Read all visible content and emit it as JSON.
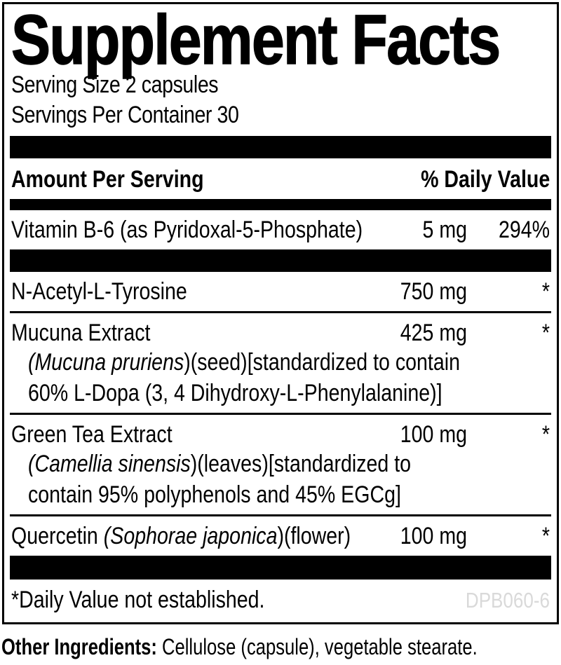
{
  "label": {
    "title": "Supplement Facts",
    "serving_size": "Serving Size 2 capsules",
    "servings_per_container": "Servings Per Container 30",
    "header": {
      "amount_per_serving": "Amount Per Serving",
      "daily_value": "% Daily Value"
    },
    "rows": [
      {
        "name_parts": [
          {
            "t": "Vitamin B-6 (as Pyridoxal-5-Phosphate)"
          }
        ],
        "amount": "5 mg",
        "dv": "294%",
        "after": "bar"
      },
      {
        "name_parts": [
          {
            "t": "N-Acetyl-L-Tyrosine"
          }
        ],
        "amount": "750 mg",
        "dv": "*",
        "after": "rule"
      },
      {
        "name_parts": [
          {
            "t": "Mucuna Extract"
          }
        ],
        "amount": "425 mg",
        "dv": "*",
        "details": [
          [
            {
              "t": "(Mucuna pruriens",
              "i": true
            },
            {
              "t": ")(seed)[standardized to contain"
            }
          ],
          [
            {
              "t": "60% L-Dopa (3, 4 Dihydroxy-L-Phenylalanine)]"
            }
          ]
        ],
        "after": "rule"
      },
      {
        "name_parts": [
          {
            "t": "Green Tea Extract"
          }
        ],
        "amount": "100 mg",
        "dv": "*",
        "details": [
          [
            {
              "t": "(Camellia sinensis",
              "i": true
            },
            {
              "t": ")(leaves)[standardized to"
            }
          ],
          [
            {
              "t": "contain 95% polyphenols and 45% EGCg]"
            }
          ]
        ],
        "after": "rule"
      },
      {
        "name_parts": [
          {
            "t": "Quercetin "
          },
          {
            "t": "(Sophorae japonica",
            "i": true
          },
          {
            "t": ")(flower)"
          }
        ],
        "amount": "100 mg",
        "dv": "*",
        "after": "bar-bottom"
      }
    ],
    "footnote": "*Daily Value not established.",
    "code": "DPB060-6",
    "other_ingredients": {
      "label": "Other Ingredients:",
      "text": " Cellulose (capsule), vegetable stearate."
    }
  },
  "colors": {
    "ink": "#000000",
    "background": "#ffffff",
    "code_gray": "#d9d9d9"
  }
}
